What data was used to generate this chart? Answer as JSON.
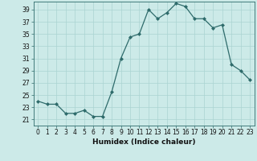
{
  "x": [
    0,
    1,
    2,
    3,
    4,
    5,
    6,
    7,
    8,
    9,
    10,
    11,
    12,
    13,
    14,
    15,
    16,
    17,
    18,
    19,
    20,
    21,
    22,
    23
  ],
  "y": [
    24.0,
    23.5,
    23.5,
    22.0,
    22.0,
    22.5,
    21.5,
    21.5,
    25.5,
    31.0,
    34.5,
    35.0,
    39.0,
    37.5,
    38.5,
    40.0,
    39.5,
    37.5,
    37.5,
    36.0,
    36.5,
    30.0,
    29.0,
    27.5
  ],
  "line_color": "#2e6b6b",
  "marker_color": "#2e6b6b",
  "bg_color": "#cceae8",
  "grid_color": "#aad4d2",
  "xlabel": "Humidex (Indice chaleur)",
  "ylim": [
    20,
    40
  ],
  "xlim_min": -0.5,
  "xlim_max": 23.5,
  "yticks": [
    21,
    23,
    25,
    27,
    29,
    31,
    33,
    35,
    37,
    39
  ],
  "xticks": [
    0,
    1,
    2,
    3,
    4,
    5,
    6,
    7,
    8,
    9,
    10,
    11,
    12,
    13,
    14,
    15,
    16,
    17,
    18,
    19,
    20,
    21,
    22,
    23
  ],
  "label_fontsize": 6.5,
  "tick_fontsize": 5.5
}
